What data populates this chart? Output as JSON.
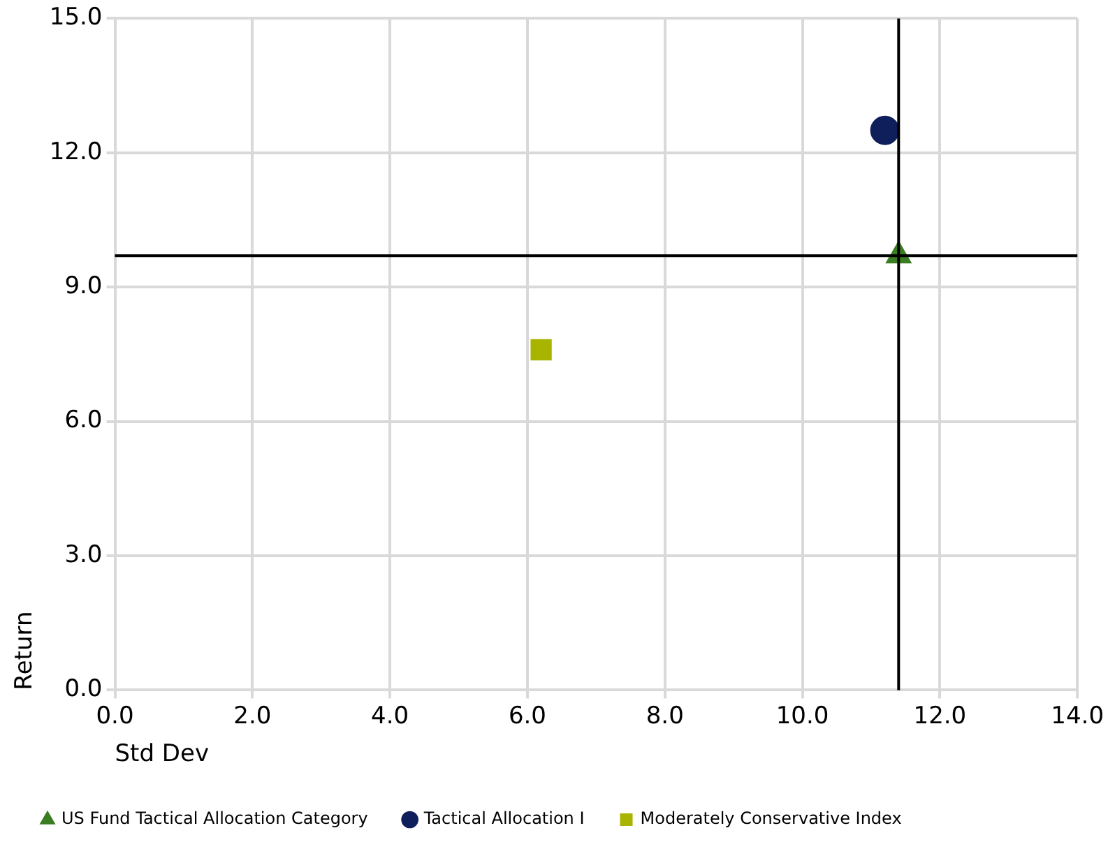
{
  "chart_data": {
    "type": "scatter",
    "xlabel": "Std Dev",
    "ylabel": "Return",
    "xlim": [
      0,
      14
    ],
    "xticks": [
      {
        "value": 0,
        "label": "0.0"
      },
      {
        "value": 2,
        "label": "2.0"
      },
      {
        "value": 4,
        "label": "4.0"
      },
      {
        "value": 6,
        "label": "6.0"
      },
      {
        "value": 8,
        "label": "8.0"
      },
      {
        "value": 10,
        "label": "10.0"
      },
      {
        "value": 12,
        "label": "12.0"
      },
      {
        "value": 14,
        "label": "14.0"
      }
    ],
    "ylim": [
      0,
      15
    ],
    "yticks": [
      {
        "value": 0,
        "label": "0.0"
      },
      {
        "value": 3,
        "label": "3.0"
      },
      {
        "value": 6,
        "label": "6.0"
      },
      {
        "value": 9,
        "label": "9.0"
      },
      {
        "value": 12,
        "label": "12.0"
      },
      {
        "value": 15,
        "label": "15.0"
      }
    ],
    "grid": true,
    "legend": "bottom left",
    "series": [
      {
        "name": "US Fund Tactical Allocation Category",
        "color": "#3a7d22",
        "marker": "triangle",
        "x": [
          11.4
        ],
        "values": [
          9.7
        ]
      },
      {
        "name": "Tactical Allocation I",
        "color": "#0f1f5c",
        "marker": "circle",
        "x": [
          11.2
        ],
        "values": [
          12.5
        ]
      },
      {
        "name": "Moderately Conservative Index",
        "color": "#a8b400",
        "marker": "square",
        "x": [
          6.2
        ],
        "values": [
          7.6
        ]
      }
    ],
    "ref_lines": [
      {
        "axis": "x",
        "value": 11.4,
        "color": "#000000"
      },
      {
        "axis": "y",
        "value": 9.7,
        "color": "#000000"
      }
    ]
  }
}
